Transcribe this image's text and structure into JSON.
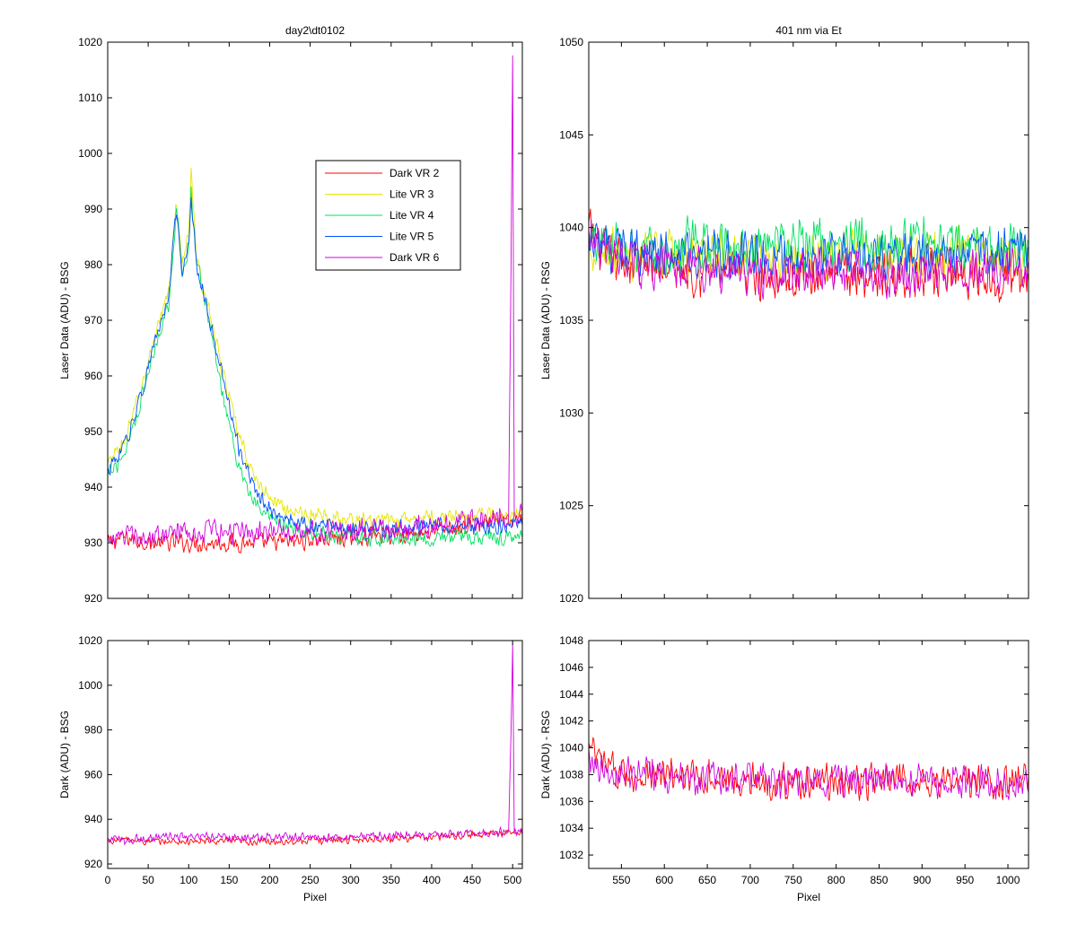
{
  "figure": {
    "background": "#ffffff",
    "series_colors": {
      "Dark VR 2": "#ff0000",
      "Lite VR 3": "#e6e600",
      "Lite VR 4": "#00e060",
      "Lite VR 5": "#0050ff",
      "Dark VR 6": "#d000e0"
    }
  },
  "chart_data": [
    {
      "id": "bsg-laser",
      "type": "line",
      "title": "day2\\dt0102",
      "xlabel": "",
      "ylabel": "Laser Data (ADU) - BSG",
      "xlim": [
        0,
        512
      ],
      "ylim": [
        920,
        1020
      ],
      "xticks": [
        0,
        50,
        100,
        150,
        200,
        250,
        300,
        350,
        400,
        450,
        500
      ],
      "show_xticklabels": false,
      "yticks": [
        920,
        930,
        940,
        950,
        960,
        970,
        980,
        990,
        1000,
        1010,
        1020
      ],
      "grid": false,
      "legend": {
        "position": "top-right",
        "entries": [
          "Dark VR 2",
          "Lite VR 3",
          "Lite VR 4",
          "Lite VR 5",
          "Dark VR 6"
        ]
      },
      "series": [
        {
          "name": "Dark VR 2",
          "color": "#ff0000",
          "x": [
            1,
            20,
            50,
            100,
            150,
            200,
            250,
            300,
            350,
            400,
            450,
            495,
            512
          ],
          "y": [
            930,
            931,
            930,
            930,
            930,
            930,
            930.5,
            931,
            931.5,
            932,
            933,
            934,
            934
          ],
          "noise": 2.0
        },
        {
          "name": "Lite VR 3",
          "color": "#e6e600",
          "x": [
            1,
            20,
            40,
            60,
            75,
            85,
            92,
            100,
            103,
            110,
            120,
            140,
            160,
            180,
            200,
            220,
            250,
            300,
            350,
            400,
            450,
            512
          ],
          "y": [
            944,
            948,
            957,
            968,
            975,
            991,
            980,
            985,
            998,
            980,
            975,
            962,
            950,
            942,
            938,
            936,
            935,
            934,
            934,
            934.5,
            935,
            935
          ],
          "noise": 1.8
        },
        {
          "name": "Lite VR 4",
          "color": "#00e060",
          "x": [
            1,
            20,
            40,
            60,
            75,
            85,
            92,
            100,
            103,
            110,
            120,
            140,
            160,
            180,
            200,
            220,
            250,
            300,
            350,
            400,
            450,
            512
          ],
          "y": [
            942,
            946,
            955,
            966,
            973,
            990,
            979,
            983,
            993,
            980,
            974,
            958,
            945,
            937,
            934,
            933,
            932,
            931,
            930.5,
            931,
            931,
            931
          ],
          "noise": 1.8
        },
        {
          "name": "Lite VR 5",
          "color": "#0050ff",
          "x": [
            1,
            20,
            40,
            60,
            75,
            85,
            92,
            100,
            103,
            110,
            120,
            140,
            160,
            180,
            200,
            220,
            250,
            300,
            350,
            400,
            450,
            512
          ],
          "y": [
            943,
            947,
            956,
            967,
            974,
            990,
            979,
            984,
            993,
            979,
            974,
            961,
            948,
            940,
            936,
            934,
            933,
            932.5,
            932.5,
            933,
            933,
            933
          ],
          "noise": 1.8
        },
        {
          "name": "Dark VR 6",
          "color": "#d000e0",
          "x": [
            1,
            20,
            45,
            60,
            100,
            200,
            300,
            400,
            450,
            495,
            498,
            500,
            502,
            512
          ],
          "y": [
            931,
            931,
            931,
            932,
            932,
            932,
            932,
            933,
            934,
            934.5,
            980,
            1019,
            935,
            935
          ],
          "noise": 2.5
        }
      ]
    },
    {
      "id": "rsg-laser",
      "type": "line",
      "title": "401 nm via Et",
      "xlabel": "",
      "ylabel": "Laser Data (ADU) - RSG",
      "xlim": [
        512,
        1024
      ],
      "ylim": [
        1020,
        1050
      ],
      "xticks": [
        550,
        600,
        650,
        700,
        750,
        800,
        850,
        900,
        950,
        1000
      ],
      "show_xticklabels": false,
      "yticks": [
        1020,
        1025,
        1030,
        1035,
        1040,
        1045,
        1050
      ],
      "grid": false,
      "series": [
        {
          "name": "Dark VR 2",
          "color": "#ff0000",
          "x": [
            512,
            530,
            560,
            700,
            900,
            1024
          ],
          "y": [
            1040,
            1038.5,
            1038,
            1037.5,
            1037.5,
            1037.5
          ],
          "noise": 1.6
        },
        {
          "name": "Lite VR 3",
          "color": "#e6e600",
          "x": [
            512,
            560,
            700,
            900,
            1024
          ],
          "y": [
            1039,
            1038.5,
            1038.5,
            1038.5,
            1038.5
          ],
          "noise": 1.6
        },
        {
          "name": "Lite VR 4",
          "color": "#00e060",
          "x": [
            512,
            560,
            700,
            900,
            1024
          ],
          "y": [
            1039.5,
            1039,
            1039,
            1039,
            1039
          ],
          "noise": 1.7
        },
        {
          "name": "Lite VR 5",
          "color": "#0050ff",
          "x": [
            512,
            560,
            700,
            900,
            1024
          ],
          "y": [
            1039,
            1038.5,
            1038.5,
            1038.5,
            1038.5
          ],
          "noise": 1.6
        },
        {
          "name": "Dark VR 6",
          "color": "#d000e0",
          "x": [
            512,
            530,
            560,
            700,
            900,
            1024
          ],
          "y": [
            1039.5,
            1038.5,
            1038,
            1037.5,
            1037.5,
            1037.5
          ],
          "noise": 1.5
        }
      ]
    },
    {
      "id": "bsg-dark",
      "type": "line",
      "title": "",
      "xlabel": "Pixel",
      "ylabel": "Dark (ADU) - BSG",
      "xlim": [
        0,
        512
      ],
      "ylim": [
        918,
        1020
      ],
      "xticks": [
        0,
        50,
        100,
        150,
        200,
        250,
        300,
        350,
        400,
        450,
        500
      ],
      "show_xticklabels": true,
      "yticks": [
        920,
        940,
        960,
        980,
        1000,
        1020
      ],
      "grid": false,
      "series": [
        {
          "name": "Dark VR 2",
          "color": "#ff0000",
          "x": [
            1,
            20,
            50,
            100,
            150,
            200,
            250,
            300,
            350,
            400,
            450,
            495,
            512
          ],
          "y": [
            930,
            931,
            930,
            930,
            930,
            930,
            930.5,
            931,
            931.5,
            932,
            933,
            934,
            934
          ],
          "noise": 2.0
        },
        {
          "name": "Dark VR 6",
          "color": "#d000e0",
          "x": [
            1,
            20,
            45,
            60,
            100,
            200,
            300,
            400,
            450,
            495,
            498,
            500,
            502,
            512
          ],
          "y": [
            931,
            931,
            931,
            932,
            932,
            932,
            932,
            933,
            934,
            934.5,
            980,
            1019,
            935,
            935
          ],
          "noise": 2.5
        }
      ]
    },
    {
      "id": "rsg-dark",
      "type": "line",
      "title": "",
      "xlabel": "Pixel",
      "ylabel": "Dark (ADU) - RSG",
      "xlim": [
        512,
        1024
      ],
      "ylim": [
        1031,
        1048
      ],
      "xticks": [
        550,
        600,
        650,
        700,
        750,
        800,
        850,
        900,
        950,
        1000
      ],
      "show_xticklabels": true,
      "yticks": [
        1032,
        1034,
        1036,
        1038,
        1040,
        1042,
        1044,
        1046,
        1048
      ],
      "grid": false,
      "series": [
        {
          "name": "Dark VR 2",
          "color": "#ff0000",
          "x": [
            512,
            530,
            560,
            700,
            900,
            1024
          ],
          "y": [
            1040,
            1038.5,
            1038,
            1037.5,
            1037.5,
            1037.5
          ],
          "noise": 1.6
        },
        {
          "name": "Dark VR 6",
          "color": "#d000e0",
          "x": [
            512,
            530,
            560,
            700,
            900,
            1024
          ],
          "y": [
            1039.5,
            1038.5,
            1038,
            1037.5,
            1037.5,
            1037.5
          ],
          "noise": 1.5
        }
      ]
    }
  ]
}
